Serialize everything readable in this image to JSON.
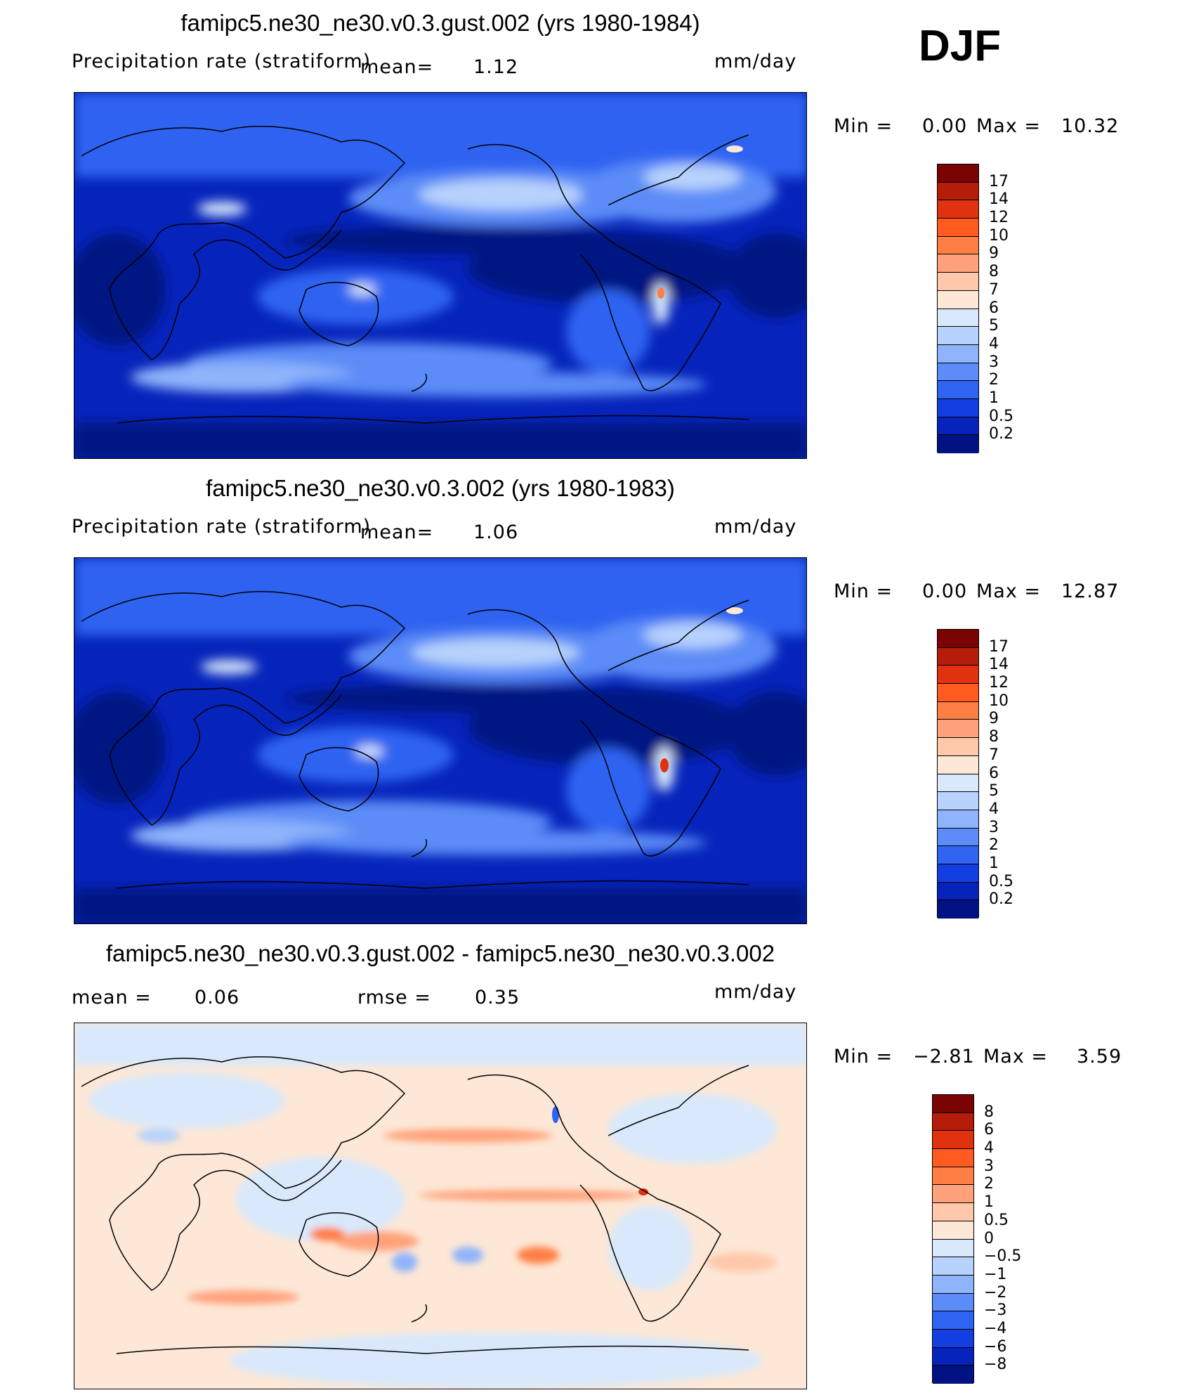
{
  "season": "DJF",
  "panels": [
    {
      "title": "famipc5.ne30_ne30.v0.3.gust.002 (yrs 1980-1984)",
      "left_label": "Precipitation rate (stratiform)",
      "mean_label": "mean=",
      "mean_value": "1.12",
      "units": "mm/day",
      "min_label": "Min =",
      "min_value": "0.00",
      "max_label": "Max =",
      "max_value": "10.32",
      "colorbar": {
        "labels": [
          "17",
          "14",
          "12",
          "10",
          "9",
          "8",
          "7",
          "6",
          "5",
          "4",
          "3",
          "2",
          "1",
          "0.5",
          "0.2"
        ],
        "colors": [
          "#7a0404",
          "#b51c0a",
          "#e0320e",
          "#ff5a1f",
          "#ff7e43",
          "#ffa27c",
          "#ffc8ab",
          "#fde7d6",
          "#d9e9fb",
          "#b7d2fc",
          "#8fb4fb",
          "#5b8cf7",
          "#2f63f1",
          "#123ee2",
          "#0624bb",
          "#031282"
        ]
      }
    },
    {
      "title": "famipc5.ne30_ne30.v0.3.002 (yrs 1980-1983)",
      "left_label": "Precipitation rate (stratiform)",
      "mean_label": "mean=",
      "mean_value": "1.06",
      "units": "mm/day",
      "min_label": "Min =",
      "min_value": "0.00",
      "max_label": "Max =",
      "max_value": "12.87",
      "colorbar": {
        "labels": [
          "17",
          "14",
          "12",
          "10",
          "9",
          "8",
          "7",
          "6",
          "5",
          "4",
          "3",
          "2",
          "1",
          "0.5",
          "0.2"
        ],
        "colors": [
          "#7a0404",
          "#b51c0a",
          "#e0320e",
          "#ff5a1f",
          "#ff7e43",
          "#ffa27c",
          "#ffc8ab",
          "#fde7d6",
          "#d9e9fb",
          "#b7d2fc",
          "#8fb4fb",
          "#5b8cf7",
          "#2f63f1",
          "#123ee2",
          "#0624bb",
          "#031282"
        ]
      }
    },
    {
      "title": "famipc5.ne30_ne30.v0.3.gust.002 - famipc5.ne30_ne30.v0.3.002",
      "mean_label": "mean =",
      "mean_value": "0.06",
      "rmse_label": "rmse =",
      "rmse_value": "0.35",
      "units": "mm/day",
      "min_label": "Min =",
      "min_value": "−2.81",
      "max_label": "Max =",
      "max_value": "3.59",
      "colorbar": {
        "labels": [
          "8",
          "6",
          "4",
          "3",
          "2",
          "1",
          "0.5",
          "0",
          "−0.5",
          "−1",
          "−2",
          "−3",
          "−4",
          "−6",
          "−8"
        ],
        "colors": [
          "#7a0404",
          "#b51c0a",
          "#e0320e",
          "#ff5a1f",
          "#ff7e43",
          "#ffa27c",
          "#ffc8ab",
          "#fde7d6",
          "#d9e9fb",
          "#b7d2fc",
          "#8fb4fb",
          "#5b8cf7",
          "#2f63f1",
          "#123ee2",
          "#0624bb",
          "#031282"
        ]
      }
    }
  ]
}
